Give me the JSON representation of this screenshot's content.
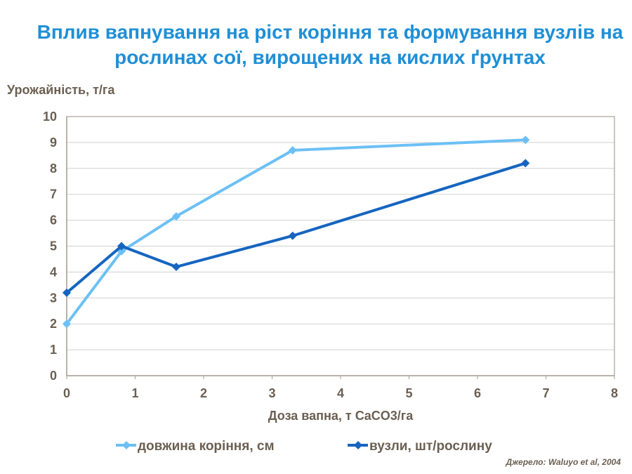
{
  "title": "Вплив вапнування на ріст коріння та формування вузлів на рослинах сої, вирощених на кислих ґрунтах",
  "source": "Джерело: Waluyo et al, 2004",
  "colors": {
    "series1": "#6cc0f5",
    "series2": "#1565c0",
    "grid": "#d0d0d0",
    "axis": "#a89f95",
    "text": "#6b5f52",
    "title": "#1f8fd6"
  },
  "chart_data": {
    "type": "line",
    "title": "Вплив вапнування на ріст коріння та формування вузлів на рослинах сої, вирощених на кислих ґрунтах",
    "xlabel": "Доза вапна, т CaCO3/га",
    "ylabel": "Урожайність, т/га",
    "xlim": [
      0,
      8
    ],
    "ylim": [
      0,
      10
    ],
    "xticks": [
      "0",
      "1",
      "2",
      "3",
      "4",
      "5",
      "6",
      "7",
      "8"
    ],
    "yticks": [
      "0",
      "1",
      "2",
      "3",
      "4",
      "5",
      "6",
      "7",
      "8",
      "9",
      "10"
    ],
    "grid": true,
    "legend_position": "bottom",
    "series": [
      {
        "name": "довжина коріння, см",
        "color": "#6cc0f5",
        "x": [
          0,
          0.8,
          1.6,
          3.3,
          6.7
        ],
        "y": [
          2.0,
          4.8,
          6.15,
          8.7,
          9.1
        ]
      },
      {
        "name": "вузли, шт/рослину",
        "color": "#1565c0",
        "x": [
          0,
          0.8,
          1.6,
          3.3,
          6.7
        ],
        "y": [
          3.2,
          5.0,
          4.2,
          5.4,
          8.2
        ]
      }
    ]
  }
}
